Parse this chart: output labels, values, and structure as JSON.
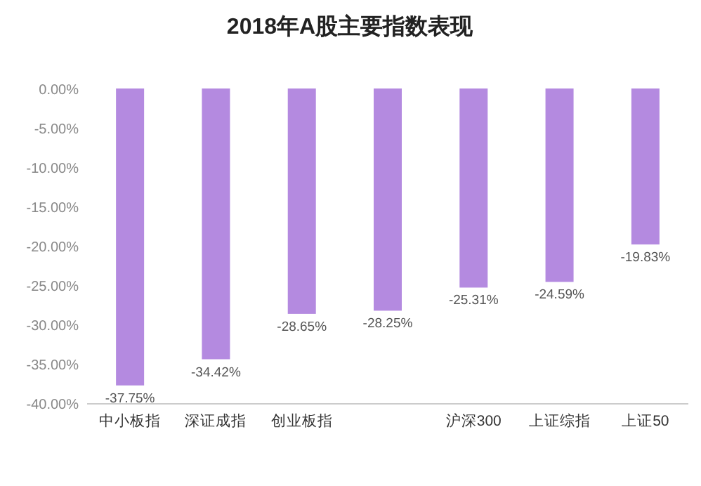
{
  "chart_data": {
    "type": "bar",
    "title": "2018年A股主要指数表现",
    "categories": [
      "中小板指",
      "深证成指",
      "创业板指",
      null,
      "沪深300",
      "上证综指",
      "上证50"
    ],
    "values": [
      -37.75,
      -34.42,
      -28.65,
      -28.25,
      -25.31,
      -24.59,
      -19.83
    ],
    "value_labels": [
      "-37.75%",
      "-34.42%",
      "-28.65%",
      "-28.25%",
      "-25.31%",
      "-24.59%",
      "-19.83%"
    ],
    "color": "#b48ae0",
    "ylim": [
      -40,
      0
    ],
    "yticks": [
      {
        "value": 0,
        "label": "0.00%"
      },
      {
        "value": -5,
        "label": "-5.00%"
      },
      {
        "value": -10,
        "label": "-10.00%"
      },
      {
        "value": -15,
        "label": "-15.00%"
      },
      {
        "value": -20,
        "label": "-20.00%"
      },
      {
        "value": -25,
        "label": "-25.00%"
      },
      {
        "value": -30,
        "label": "-30.00%"
      },
      {
        "value": -35,
        "label": "-35.00%"
      },
      {
        "value": -40,
        "label": "-40.00%"
      }
    ],
    "grid": false
  }
}
